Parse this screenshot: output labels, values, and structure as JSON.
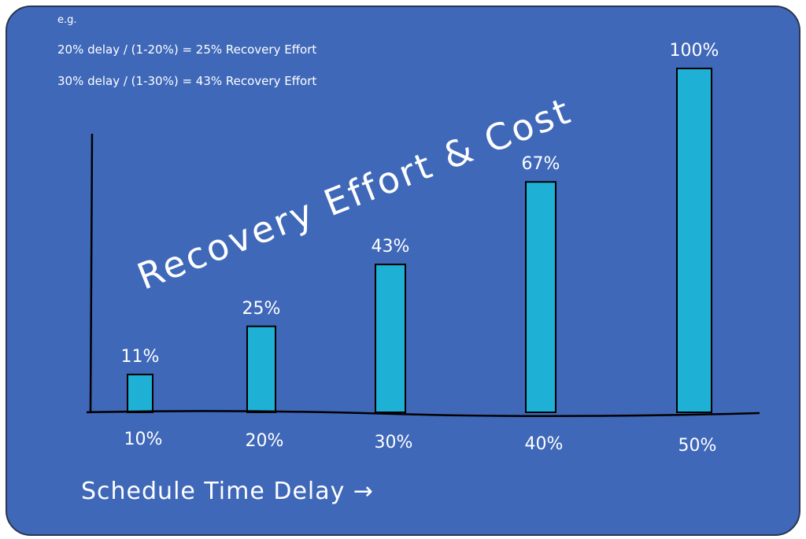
{
  "notes": {
    "eg": "e.g.",
    "line1": "20% delay / (1-20%) = 25% Recovery Effort",
    "line2": "30% delay / (1-30%) = 43% Recovery Effort"
  },
  "chart_data": {
    "type": "bar",
    "title": "Recovery Effort & Cost",
    "xlabel": "Schedule Time Delay →",
    "ylabel": "",
    "categories": [
      "10%",
      "20%",
      "30%",
      "40%",
      "50%"
    ],
    "values": [
      11,
      25,
      43,
      67,
      100
    ],
    "data_labels": [
      "11%",
      "25%",
      "43%",
      "67%",
      "100%"
    ],
    "ylim": [
      0,
      100
    ],
    "grid": false,
    "colors": {
      "background": "#3f68b9",
      "bar": "#1fb0d6",
      "axis": "#000000",
      "text": "#ffffff"
    }
  }
}
